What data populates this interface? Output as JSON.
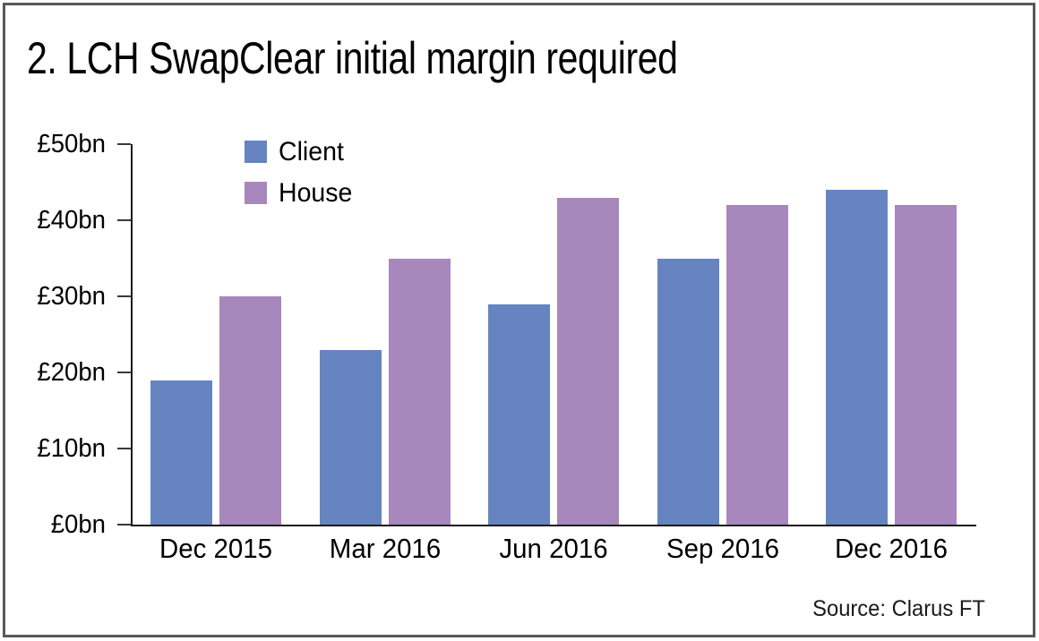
{
  "title": "2. LCH SwapClear initial margin required",
  "source_label": "Source: Clarus FT",
  "frame": {
    "border_color": "#58595b",
    "background": "#ffffff"
  },
  "chart_data": {
    "type": "bar",
    "title": "2. LCH SwapClear initial margin required",
    "categories": [
      "Dec 2015",
      "Mar 2016",
      "Jun 2016",
      "Sep 2016",
      "Dec 2016"
    ],
    "series": [
      {
        "name": "Client",
        "color": "#6684c0",
        "values": [
          19,
          23,
          29,
          35,
          44
        ]
      },
      {
        "name": "House",
        "color": "#a887bd",
        "values": [
          30,
          35,
          43,
          42,
          42
        ]
      }
    ],
    "unit": "£bn",
    "ylim": [
      0,
      50
    ],
    "ytick_values": [
      0,
      10,
      20,
      30,
      40,
      50
    ],
    "ytick_labels": [
      "£0bn",
      "£10bn",
      "£20bn",
      "£30bn",
      "£40bn",
      "£50bn"
    ],
    "xlabel": "",
    "ylabel": "",
    "grid": false,
    "legend_position": "top-left-inside",
    "legend_entries": [
      "Client",
      "House"
    ],
    "axis_color": "#1a1a1a",
    "source": "Source: Clarus FT"
  }
}
